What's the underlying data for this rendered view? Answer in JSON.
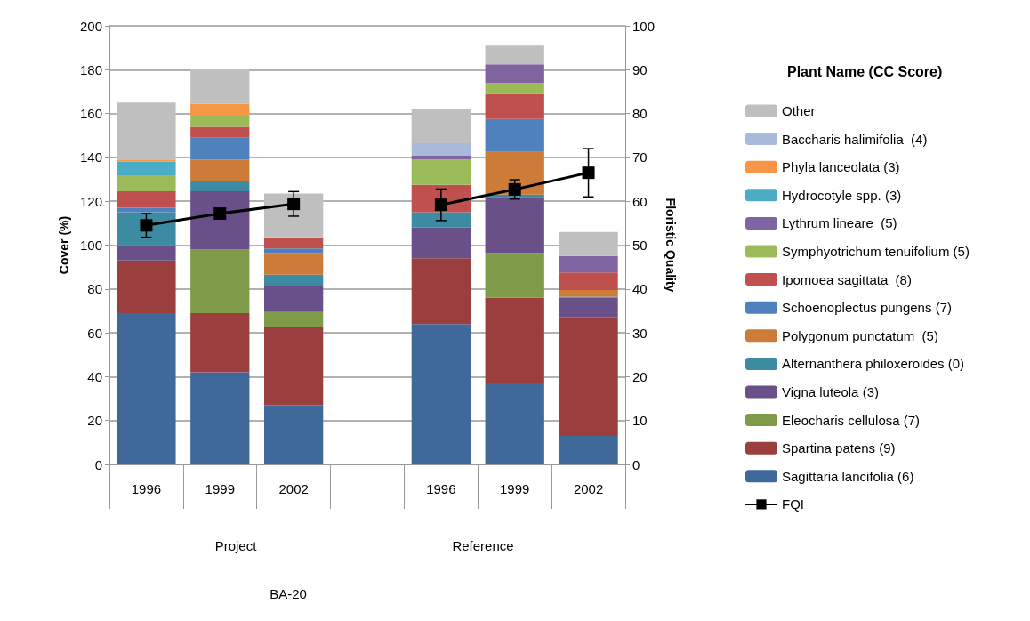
{
  "chart_data": {
    "type": "bar",
    "stacked": true,
    "categories": [
      "1996",
      "1999",
      "2002",
      null,
      "1996",
      "1999",
      "2002"
    ],
    "ylabel": "Cover (%)",
    "y2label": "Floristic Quality",
    "legend_title": "Plant Name (CC Score)",
    "ylim": [
      0,
      200
    ],
    "yticks": [
      0,
      20,
      40,
      60,
      80,
      100,
      120,
      140,
      160,
      180,
      200
    ],
    "y2lim": [
      0,
      100
    ],
    "y2ticks": [
      0,
      10,
      20,
      30,
      40,
      50,
      60,
      70,
      80,
      90,
      100
    ],
    "grid": "y",
    "legend": "right",
    "annotations": [
      "Project",
      "Reference",
      "BA-20"
    ],
    "series": [
      {
        "name": "Sagittaria lancifolia (6)",
        "color": "#3f689b",
        "values": [
          69,
          42,
          27,
          null,
          64,
          37,
          13
        ]
      },
      {
        "name": "Spartina patens (9)",
        "color": "#9b3f3e",
        "values": [
          24,
          27,
          35.5,
          null,
          30,
          39,
          54
        ]
      },
      {
        "name": "Eleocharis cellulosa (7)",
        "color": "#7f9a48",
        "values": [
          0,
          29,
          7,
          null,
          0,
          20.5,
          0
        ]
      },
      {
        "name": "Vigna luteola (3)",
        "color": "#6a5089",
        "values": [
          7,
          26.5,
          12,
          null,
          14,
          25.5,
          9
        ]
      },
      {
        "name": "Alternanthera philoxeroides (0)",
        "color": "#3c8ba2",
        "values": [
          15,
          4.5,
          5,
          null,
          7,
          1,
          0.5
        ]
      },
      {
        "name": "Polygonum punctatum  (5)",
        "color": "#cc7b38",
        "values": [
          0,
          10,
          10,
          null,
          0,
          19.5,
          3
        ]
      },
      {
        "name": "Schoenoplectus pungens (7)",
        "color": "#4f81bd",
        "values": [
          2,
          10,
          2,
          null,
          0,
          15,
          0
        ]
      },
      {
        "name": "Ipomoea sagittata  (8)",
        "color": "#c0504d",
        "values": [
          7.5,
          5,
          4.5,
          null,
          12.5,
          11.5,
          8
        ]
      },
      {
        "name": "Symphyotrichum tenuifolium (5)",
        "color": "#9bbb59",
        "values": [
          7,
          5,
          0.5,
          null,
          11.5,
          5,
          0
        ]
      },
      {
        "name": "Lythrum lineare  (5)",
        "color": "#8064a2",
        "values": [
          0,
          0,
          0,
          null,
          2,
          8.5,
          7.5
        ]
      },
      {
        "name": "Hydrocotyle spp. (3)",
        "color": "#4bacc6",
        "values": [
          6.5,
          0,
          0,
          null,
          0,
          0,
          0
        ]
      },
      {
        "name": "Phyla lanceolata (3)",
        "color": "#f79646",
        "values": [
          1,
          5.5,
          0,
          null,
          0,
          0,
          0
        ]
      },
      {
        "name": "Baccharis halimifolia  (4)",
        "color": "#a9b9d9",
        "values": [
          0,
          0,
          0,
          null,
          5.5,
          0,
          0
        ]
      },
      {
        "name": "Other",
        "color": "#bfbfbf",
        "values": [
          26,
          16,
          20,
          null,
          15.5,
          8.5,
          11
        ]
      },
      {
        "name": "FQI",
        "type": "line",
        "axis": "y2",
        "color": "#000000",
        "marker": "square",
        "values": [
          54.5,
          57.2,
          59.4,
          null,
          59.2,
          62.7,
          66.5
        ],
        "errors": [
          2.7,
          null,
          2.8,
          null,
          3.6,
          2.2,
          5.5
        ]
      }
    ]
  }
}
